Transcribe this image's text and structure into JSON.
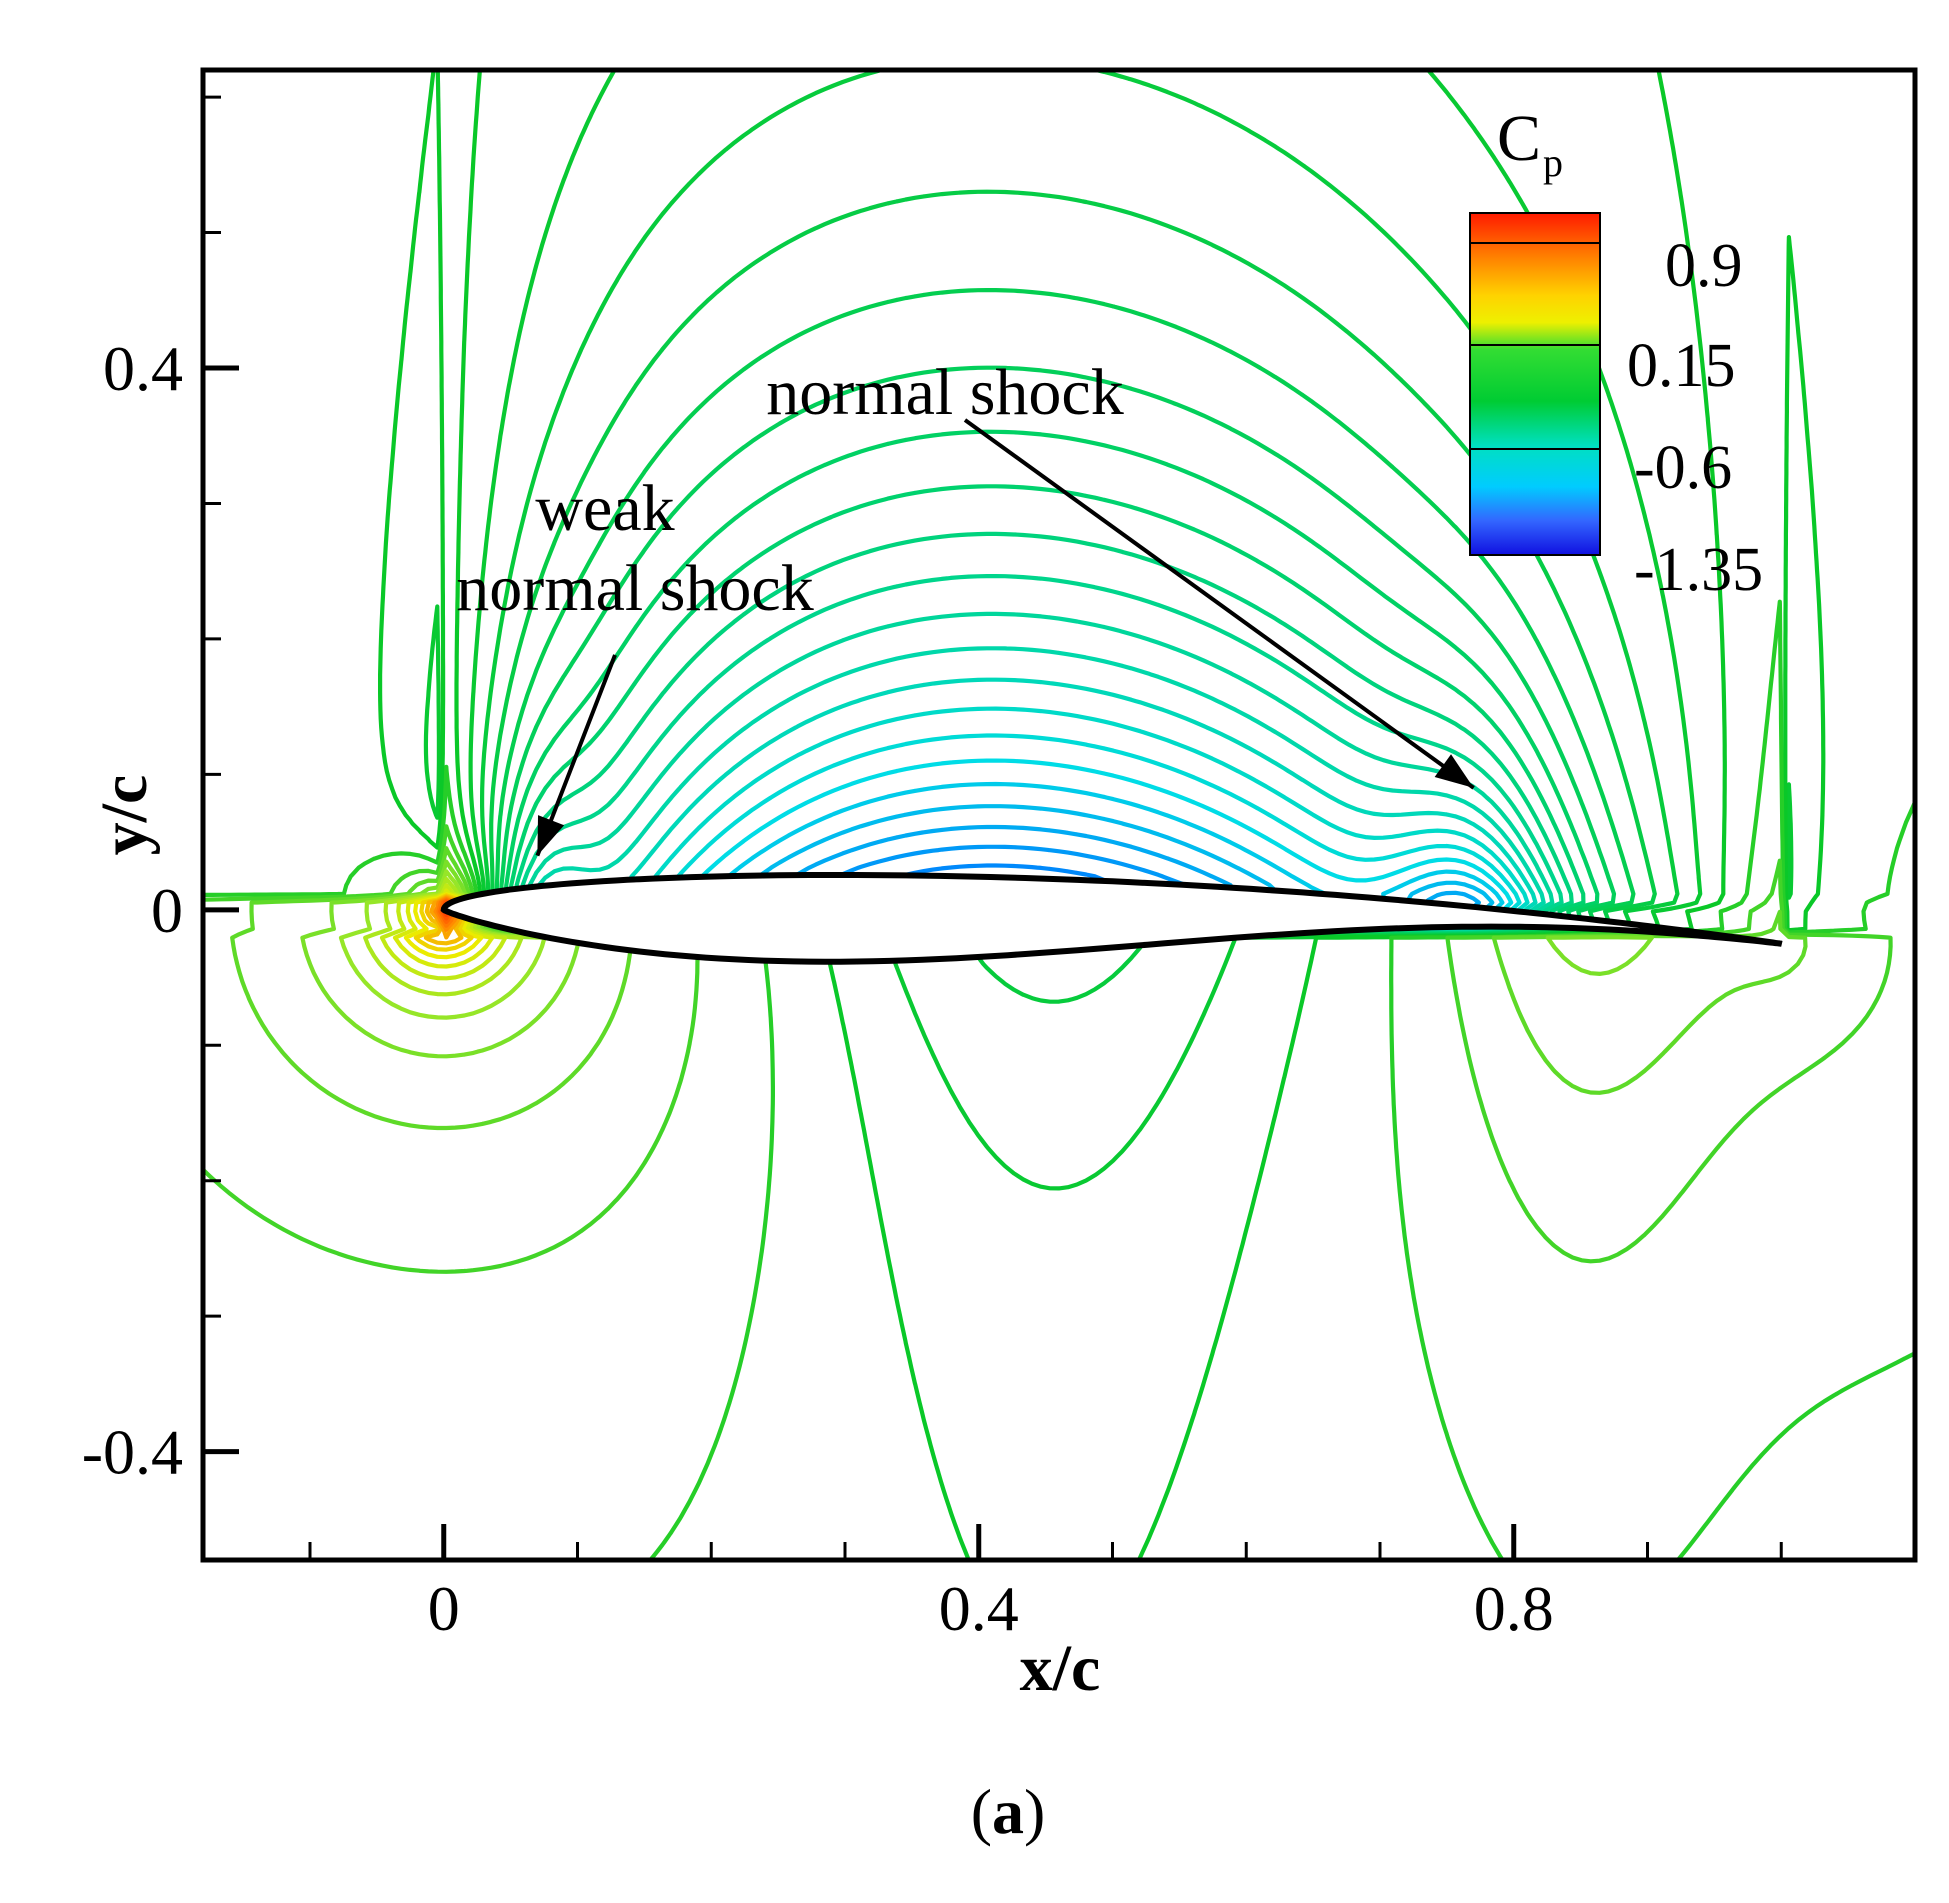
{
  "chart_data": {
    "type": "contour",
    "xlabel": "x/c",
    "ylabel": "y/c",
    "xlim": [
      -0.18,
      1.1
    ],
    "ylim": [
      -0.48,
      0.62
    ],
    "x_ticks": [
      0,
      0.4,
      0.8
    ],
    "x_tick_labels": [
      "0",
      "0.4",
      "0.8"
    ],
    "y_ticks": [
      -0.4,
      0,
      0.4
    ],
    "y_tick_labels": [
      "-0.4",
      "0",
      "0.4"
    ],
    "colorbar": {
      "title": "C",
      "title_subscript": "p",
      "ticks": [
        "0.9",
        "0.15",
        "-0.6",
        "-1.35"
      ],
      "range": [
        -1.35,
        1.1
      ],
      "colors": [
        "#1a1aff",
        "#00e5e5",
        "#00cc33",
        "#33e033",
        "#ffee00",
        "#ff8800",
        "#ff1a00"
      ]
    },
    "annotations": [
      {
        "text_lines": [
          "weak",
          "normal shock"
        ],
        "points_to": {
          "x": 0.07,
          "y": 0.04
        }
      },
      {
        "text_lines": [
          "normal shock"
        ],
        "points_to": {
          "x": 0.77,
          "y": 0.09
        }
      }
    ],
    "shock_locations_x": [
      0.07,
      0.77
    ],
    "airfoil": {
      "leading_edge": [
        0,
        0
      ],
      "trailing_edge": [
        1.0,
        -0.025
      ]
    }
  },
  "panel_label": "(a)",
  "panel_letter": "a",
  "panel_paren_open": "(",
  "panel_paren_close": ")"
}
